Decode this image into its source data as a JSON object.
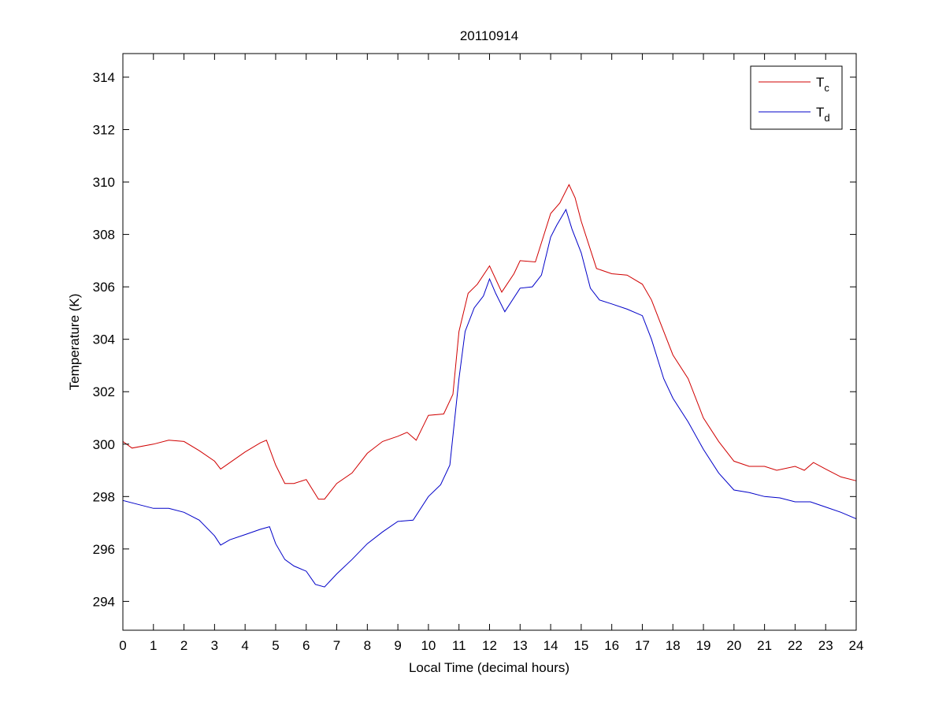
{
  "chart_data": {
    "type": "line",
    "title": "20110914",
    "xlabel": "Local Time (decimal hours)",
    "ylabel": "Temperature (K)",
    "xlim": [
      0,
      24
    ],
    "ylim": [
      292.9,
      314.9
    ],
    "xticks": [
      0,
      1,
      2,
      3,
      4,
      5,
      6,
      7,
      8,
      9,
      10,
      11,
      12,
      13,
      14,
      15,
      16,
      17,
      18,
      19,
      20,
      21,
      22,
      23,
      24
    ],
    "yticks": [
      294,
      296,
      298,
      300,
      302,
      304,
      306,
      308,
      310,
      312,
      314
    ],
    "grid": false,
    "legend_position": "top-right",
    "series": [
      {
        "name": "T",
        "subscript": "c",
        "color": "#d00000",
        "x": [
          0,
          0.3,
          1,
          1.5,
          2,
          2.5,
          3,
          3.2,
          4,
          4.5,
          4.7,
          5,
          5.3,
          5.6,
          6,
          6.4,
          6.6,
          7,
          7.5,
          8,
          8.5,
          9,
          9.3,
          9.6,
          10,
          10.5,
          10.8,
          11,
          11.3,
          11.6,
          12,
          12.4,
          12.8,
          13,
          13.5,
          14,
          14.3,
          14.6,
          14.8,
          15,
          15.5,
          16,
          16.5,
          17,
          17.3,
          17.6,
          18,
          18.5,
          19,
          19.5,
          20,
          20.5,
          21,
          21.4,
          22,
          22.3,
          22.6,
          23,
          23.5,
          24
        ],
        "y": [
          300.1,
          299.85,
          300.0,
          300.15,
          300.1,
          299.75,
          299.35,
          299.05,
          299.7,
          300.05,
          300.15,
          299.2,
          298.5,
          298.5,
          298.65,
          297.9,
          297.9,
          298.5,
          298.9,
          299.65,
          300.1,
          300.3,
          300.45,
          300.15,
          301.1,
          301.15,
          301.9,
          304.3,
          305.75,
          306.1,
          306.8,
          305.8,
          306.5,
          307.0,
          306.95,
          308.8,
          309.2,
          309.9,
          309.4,
          308.5,
          306.7,
          306.5,
          306.45,
          306.1,
          305.5,
          304.6,
          303.4,
          302.5,
          301.0,
          300.1,
          299.35,
          299.15,
          299.15,
          299.0,
          299.15,
          299.0,
          299.3,
          299.05,
          298.75,
          298.6
        ]
      },
      {
        "name": "T",
        "subscript": "d",
        "color": "#0000c8",
        "x": [
          0,
          0.5,
          1,
          1.5,
          2,
          2.5,
          3,
          3.2,
          3.5,
          4,
          4.5,
          4.8,
          5,
          5.3,
          5.6,
          6,
          6.3,
          6.6,
          7,
          7.5,
          8,
          8.5,
          9,
          9.5,
          10,
          10.4,
          10.7,
          11,
          11.2,
          11.5,
          11.8,
          12,
          12.2,
          12.5,
          13,
          13.4,
          13.7,
          14,
          14.2,
          14.5,
          14.7,
          15,
          15.3,
          15.6,
          16,
          16.5,
          17,
          17.3,
          17.7,
          18,
          18.5,
          19,
          19.5,
          20,
          20.5,
          21,
          21.5,
          22,
          22.5,
          23,
          23.5,
          24
        ],
        "y": [
          297.85,
          297.7,
          297.55,
          297.55,
          297.4,
          297.1,
          296.5,
          296.15,
          296.35,
          296.55,
          296.75,
          296.85,
          296.2,
          295.6,
          295.35,
          295.15,
          294.65,
          294.55,
          295.05,
          295.6,
          296.2,
          296.65,
          297.05,
          297.1,
          298.0,
          298.45,
          299.2,
          302.5,
          304.3,
          305.2,
          305.65,
          306.3,
          305.75,
          305.05,
          305.95,
          306.0,
          306.45,
          307.9,
          308.35,
          308.95,
          308.2,
          307.3,
          305.95,
          305.5,
          305.35,
          305.15,
          304.9,
          304.0,
          302.5,
          301.75,
          300.85,
          299.8,
          298.9,
          298.25,
          298.15,
          298.0,
          297.95,
          297.8,
          297.8,
          297.6,
          297.4,
          297.15
        ]
      }
    ]
  }
}
